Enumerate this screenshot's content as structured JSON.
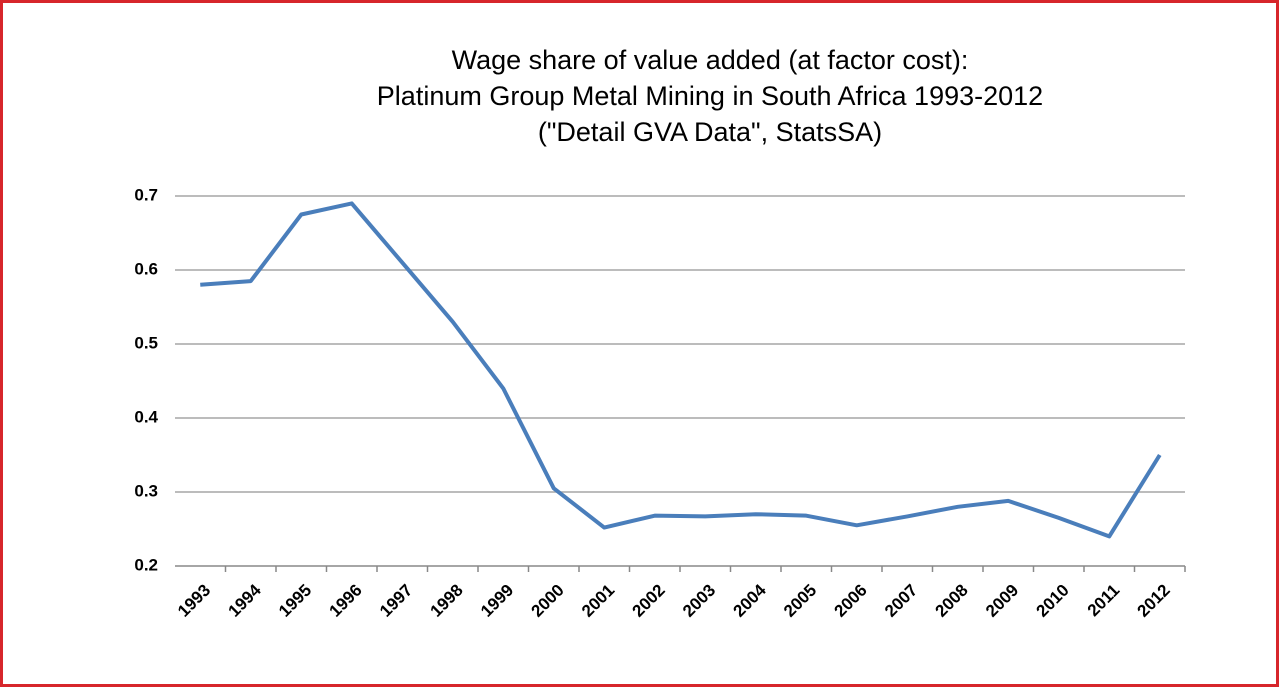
{
  "chart_data": {
    "type": "line",
    "title": [
      "Wage share of value added (at factor cost):",
      "Platinum Group Metal Mining in South Africa 1993-2012",
      "(\"Detail GVA Data\", StatsSA)"
    ],
    "categories": [
      "1993",
      "1994",
      "1995",
      "1996",
      "1997",
      "1998",
      "1999",
      "2000",
      "2001",
      "2002",
      "2003",
      "2004",
      "2005",
      "2006",
      "2007",
      "2008",
      "2009",
      "2010",
      "2011",
      "2012"
    ],
    "series": [
      {
        "name": "Wage share",
        "color": "#4a7ebb",
        "values": [
          0.58,
          0.585,
          0.675,
          0.69,
          0.61,
          0.53,
          0.44,
          0.305,
          0.252,
          0.268,
          0.267,
          0.27,
          0.268,
          0.255,
          0.267,
          0.28,
          0.288,
          0.265,
          0.24,
          0.35
        ]
      }
    ],
    "ylim": [
      0.2,
      0.7
    ],
    "yticks": [
      0.2,
      0.3,
      0.4,
      0.5,
      0.6,
      0.7
    ],
    "grid": true
  }
}
